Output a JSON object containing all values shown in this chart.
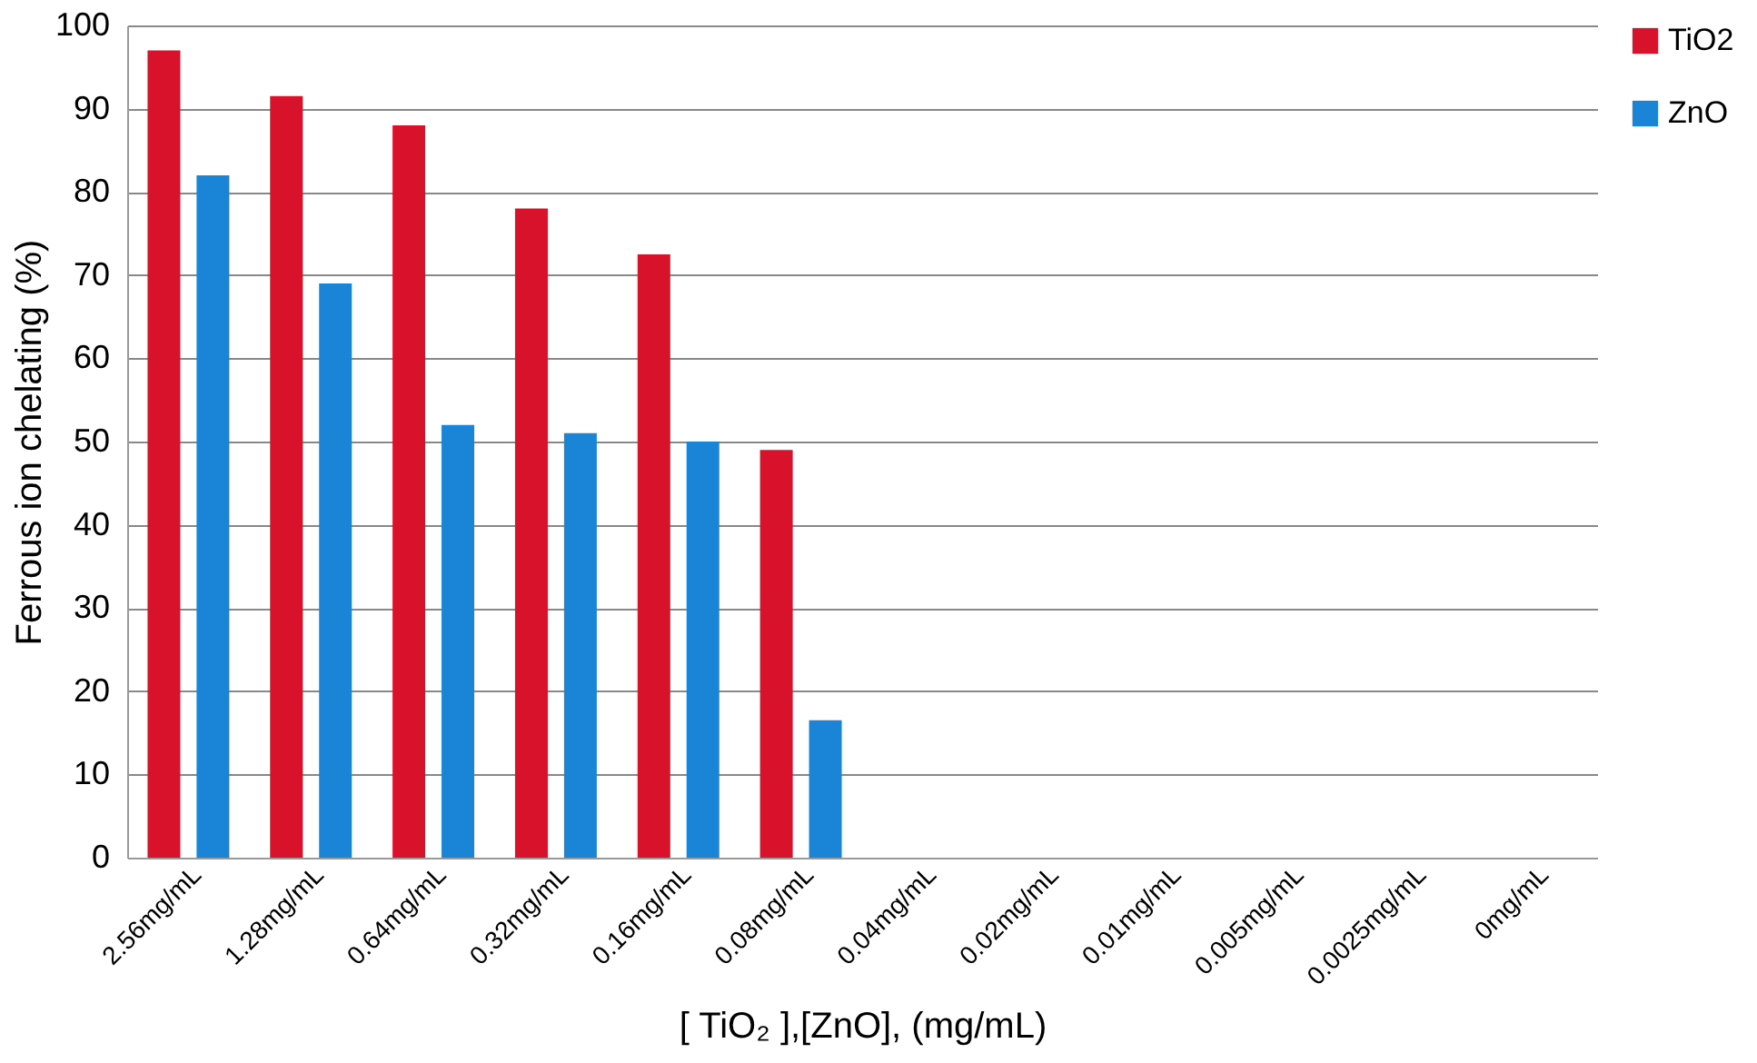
{
  "chart_data": {
    "type": "bar",
    "xlabel": "[ TiO₂ ],[ZnO], (mg/mL)",
    "ylabel": "Ferrous ion chelating (%)",
    "categories": [
      "2.56mg/mL",
      "1.28mg/mL",
      "0.64mg/mL",
      "0.32mg/mL",
      "0.16mg/mL",
      "0.08mg/mL",
      "0.04mg/mL",
      "0.02mg/mL",
      "0.01mg/mL",
      "0.005mg/mL",
      "0.0025mg/mL",
      "0mg/mL"
    ],
    "series": [
      {
        "name": "TiO2",
        "color": "#d9122b",
        "values": [
          97,
          91.5,
          88,
          78,
          72.5,
          49,
          null,
          null,
          null,
          null,
          null,
          null
        ]
      },
      {
        "name": "ZnO",
        "color": "#1a85d6",
        "values": [
          82,
          69,
          52,
          51,
          50,
          16.5,
          null,
          null,
          null,
          null,
          null,
          null
        ]
      }
    ],
    "ylim": [
      0,
      100
    ],
    "yticks": [
      0,
      10,
      20,
      30,
      40,
      50,
      60,
      70,
      80,
      90,
      100
    ],
    "grid": "y",
    "legend": "right"
  }
}
